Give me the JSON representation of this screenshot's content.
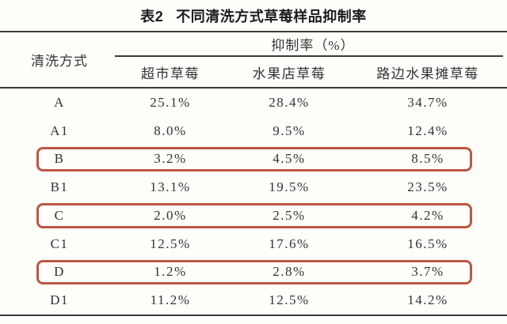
{
  "title": {
    "prefix": "表2",
    "text": "不同清洗方式草莓样品抑制率"
  },
  "table": {
    "method_header": "清洗方式",
    "span_header": "抑制率（%）",
    "columns": [
      "超市草莓",
      "水果店草莓",
      "路边水果摊草莓"
    ],
    "rows": [
      {
        "method": "A",
        "values": [
          "25.1%",
          "28.4%",
          "34.7%"
        ],
        "highlighted": false
      },
      {
        "method": "A1",
        "values": [
          "8.0%",
          "9.5%",
          "12.4%"
        ],
        "highlighted": false
      },
      {
        "method": "B",
        "values": [
          "3.2%",
          "4.5%",
          "8.5%"
        ],
        "highlighted": true
      },
      {
        "method": "B1",
        "values": [
          "13.1%",
          "19.5%",
          "23.5%"
        ],
        "highlighted": false
      },
      {
        "method": "C",
        "values": [
          "2.0%",
          "2.5%",
          "4.2%"
        ],
        "highlighted": true
      },
      {
        "method": "C1",
        "values": [
          "12.5%",
          "17.6%",
          "16.5%"
        ],
        "highlighted": false
      },
      {
        "method": "D",
        "values": [
          "1.2%",
          "2.8%",
          "3.7%"
        ],
        "highlighted": true
      },
      {
        "method": "D1",
        "values": [
          "11.2%",
          "12.5%",
          "14.2%"
        ],
        "highlighted": false
      }
    ],
    "highlight_color": "#bd5741",
    "rule_color": "#3b3b3b"
  }
}
